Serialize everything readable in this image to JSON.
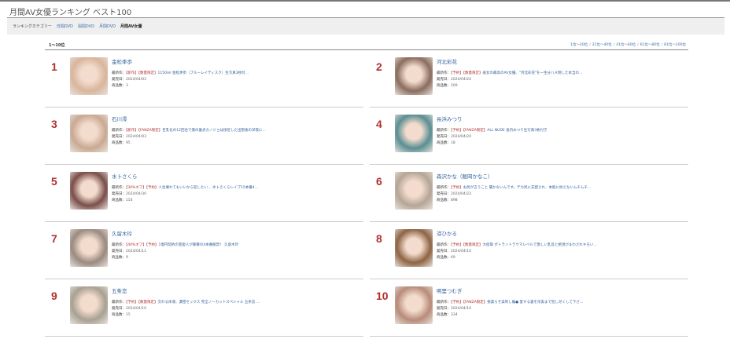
{
  "page_title": "月間AV女優ランキング ベスト100",
  "category_bar": {
    "label": "ランキングカテゴリー",
    "links": [
      "日間DVD",
      "週間DVD",
      "月間DVD"
    ],
    "current": "月間AV女優"
  },
  "range_label": "1〜10位",
  "pager": [
    "1位〜20位",
    "21位〜40位",
    "41位〜60位",
    "61位〜80位",
    "81位〜100位"
  ],
  "labels": {
    "latest": "最新作：",
    "release": "発売日：",
    "count": "商品数："
  },
  "actresses": [
    {
      "rank": "1",
      "name": "金松季歩",
      "tag": "【新作】【数量限定】",
      "title": "1150ml 金松季歩（ブルーレイディスク）生写真3枚付…",
      "date": "2024/04/03",
      "count": "3",
      "tone": "#d9b59c"
    },
    {
      "rank": "2",
      "name": "河北彩花",
      "tag": "【予約】【数量限定】",
      "title": "彼女の最高のAV女優、\"河北彩花\"を一生分ハメ倒した本当の…",
      "date": "2024/04/24",
      "count": "209",
      "tone": "#8a6d5e"
    },
    {
      "rank": "3",
      "name": "石川澪",
      "tag": "【新作】【FANZA限定】",
      "title": "巨乳化の12回合で僕の童貞カノジョは接近した出張後の深夜に…",
      "date": "2024/04/03",
      "count": "95",
      "tone": "#c9a993"
    },
    {
      "rank": "4",
      "name": "長浜みつり",
      "tag": "【予約】【FANZA限定】",
      "title": "ALL NUDE 長浜みつり生写真3枚付き",
      "date": "2024/04/24",
      "count": "18",
      "tone": "#5a8e93"
    },
    {
      "rank": "5",
      "name": "水卜さくら",
      "tag": "【30%オフ】【予約】",
      "title": "人生壊れてもいいから犯したい… 水卜さくらレイプ15本番4…",
      "date": "2024/04/30",
      "count": "154",
      "tone": "#7a4e4a"
    },
    {
      "rank": "6",
      "name": "森沢かな（飯岡かなこ）",
      "tag": "【予約】",
      "title": "お尻が言うこと 聞かないんです。デカ尻に支配され、本能に抗えないムチムチ…",
      "date": "2024/04/23",
      "count": "898",
      "tone": "#b5a596"
    },
    {
      "rank": "7",
      "name": "久留木玲",
      "tag": "【40%オフ】【予約】",
      "title": "1億円契約の芸能人が衝撃の4本番解禁！ 久留木玲",
      "date": "2024/04/11",
      "count": "9",
      "tone": "#9a8a80"
    },
    {
      "rank": "8",
      "name": "涼ひかる",
      "tag": "【予約】【数量限定】",
      "title": "大痙攣 ポトラントラウマレベルで激しい乳首と絶頂がまわされキモい…",
      "date": "2024/04/10",
      "count": "69",
      "tone": "#8e6444"
    },
    {
      "rank": "9",
      "name": "五条恋",
      "tag": "【予約】【数量限定】",
      "title": "交わる体液、濃密セックス 完全ノーカットスペシャル 五条恋 …",
      "date": "2024/04/10",
      "count": "15",
      "tone": "#a8a192"
    },
    {
      "rank": "10",
      "name": "明里つむぎ",
      "tag": "【予約】【FANZA限定】",
      "title": "挑発らせ美利し編● 愛する妻を深奥まで犯し尽くして下さ…",
      "date": "2024/04/10",
      "count": "334",
      "tone": "#b88b7a"
    }
  ]
}
